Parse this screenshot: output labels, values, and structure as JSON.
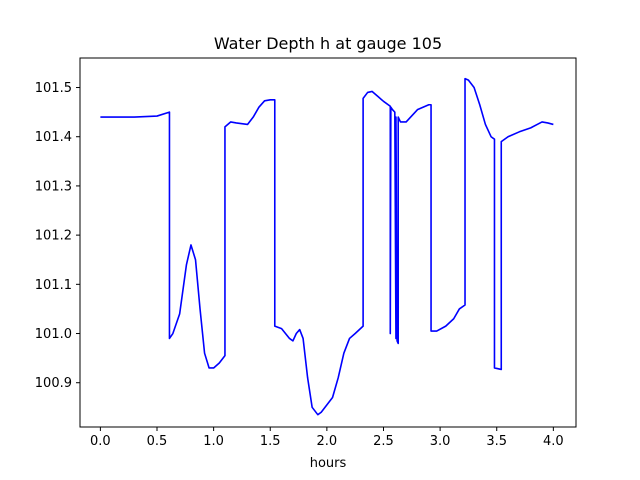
{
  "chart_data": {
    "type": "line",
    "title": "Water Depth h at gauge 105",
    "xlabel": "hours",
    "ylabel": "",
    "xlim": [
      -0.18,
      4.2
    ],
    "ylim": [
      100.81,
      101.56
    ],
    "xticks": [
      0.0,
      0.5,
      1.0,
      1.5,
      2.0,
      2.5,
      3.0,
      3.5,
      4.0
    ],
    "xtick_labels": [
      "0.0",
      "0.5",
      "1.0",
      "1.5",
      "2.0",
      "2.5",
      "3.0",
      "3.5",
      "4.0"
    ],
    "yticks": [
      100.9,
      101.0,
      101.1,
      101.2,
      101.3,
      101.4,
      101.5
    ],
    "ytick_labels": [
      "100.9",
      "101.0",
      "101.1",
      "101.2",
      "101.3",
      "101.4",
      "101.5"
    ],
    "grid": false,
    "series": [
      {
        "color": "#0000ff",
        "x": [
          0.0,
          0.3,
          0.5,
          0.61,
          0.61,
          0.64,
          0.7,
          0.76,
          0.8,
          0.84,
          0.88,
          0.92,
          0.96,
          1.0,
          1.05,
          1.1,
          1.1,
          1.15,
          1.2,
          1.3,
          1.35,
          1.4,
          1.45,
          1.5,
          1.54,
          1.54,
          1.6,
          1.67,
          1.7,
          1.73,
          1.76,
          1.79,
          1.83,
          1.87,
          1.92,
          1.95,
          2.0,
          2.05,
          2.1,
          2.15,
          2.2,
          2.25,
          2.32,
          2.32,
          2.36,
          2.4,
          2.45,
          2.5,
          2.56,
          2.56,
          2.565,
          2.58,
          2.6,
          2.61,
          2.61,
          2.62,
          2.63,
          2.63,
          2.65,
          2.7,
          2.8,
          2.9,
          2.92,
          2.92,
          2.97,
          3.05,
          3.12,
          3.17,
          3.22,
          3.22,
          3.25,
          3.3,
          3.35,
          3.4,
          3.45,
          3.48,
          3.48,
          3.54,
          3.54,
          3.6,
          3.7,
          3.8,
          3.9,
          3.95,
          4.0
        ],
        "y": [
          101.44,
          101.44,
          101.442,
          101.45,
          100.99,
          101.0,
          101.04,
          101.14,
          101.18,
          101.15,
          101.05,
          100.96,
          100.93,
          100.93,
          100.94,
          100.955,
          101.42,
          101.43,
          101.428,
          101.425,
          101.44,
          101.46,
          101.473,
          101.475,
          101.475,
          101.015,
          101.01,
          100.99,
          100.985,
          101.0,
          101.008,
          100.99,
          100.91,
          100.85,
          100.835,
          100.84,
          100.855,
          100.87,
          100.91,
          100.96,
          100.99,
          101.0,
          101.015,
          101.478,
          101.49,
          101.492,
          101.482,
          101.472,
          101.462,
          101.0,
          101.46,
          101.455,
          101.45,
          100.99,
          101.44,
          100.985,
          100.98,
          101.44,
          101.43,
          101.43,
          101.455,
          101.465,
          101.465,
          101.005,
          101.005,
          101.015,
          101.03,
          101.05,
          101.058,
          101.518,
          101.515,
          101.5,
          101.465,
          101.425,
          101.4,
          101.395,
          100.93,
          100.927,
          101.39,
          101.4,
          101.41,
          101.418,
          101.43,
          101.428,
          101.425
        ]
      }
    ]
  }
}
